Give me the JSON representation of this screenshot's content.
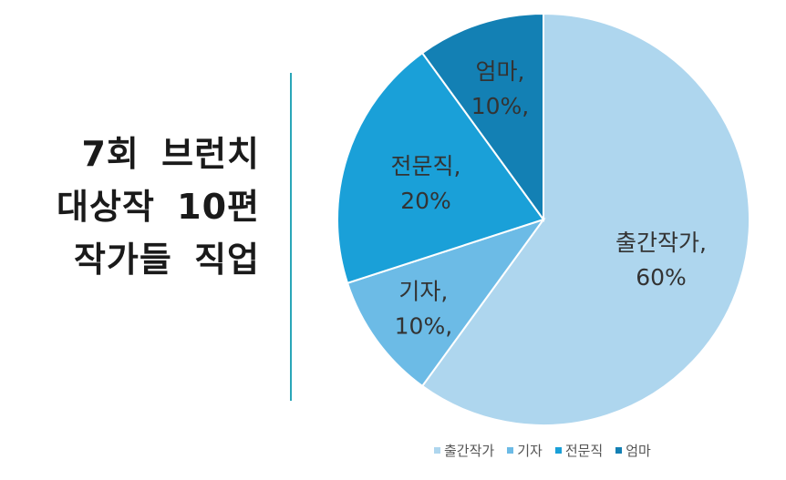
{
  "title_lines": [
    "7회 브런치",
    "대상작 10편",
    "작가들 직업"
  ],
  "chart_data": {
    "type": "pie",
    "categories": [
      "출간작가",
      "기자",
      "전문직",
      "엄마"
    ],
    "values": [
      60,
      10,
      20,
      10
    ],
    "unit": "%",
    "data_labels": [
      [
        "출간작가,",
        "60%"
      ],
      [
        "기자,",
        "10%,"
      ],
      [
        "전문직,",
        "20%"
      ],
      [
        "엄마,",
        "10%,"
      ]
    ],
    "colors": [
      "#aed6ee",
      "#6cbbe6",
      "#1aa0d8",
      "#1380b4"
    ],
    "start_angle": "12 o'clock",
    "direction": "clockwise",
    "legend_placement": "bottom"
  }
}
